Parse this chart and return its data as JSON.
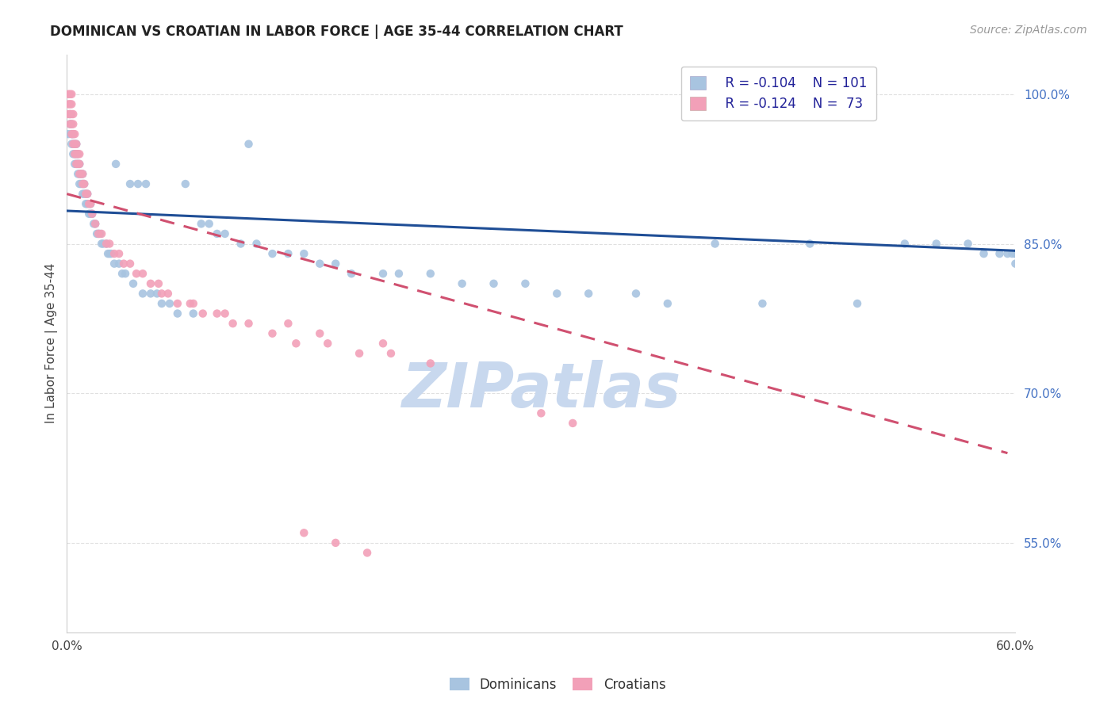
{
  "title": "DOMINICAN VS CROATIAN IN LABOR FORCE | AGE 35-44 CORRELATION CHART",
  "source": "Source: ZipAtlas.com",
  "ylabel": "In Labor Force | Age 35-44",
  "xlim": [
    0.0,
    0.6
  ],
  "ylim": [
    0.46,
    1.04
  ],
  "right_yticks": [
    1.0,
    0.85,
    0.7,
    0.55
  ],
  "right_ytick_labels": [
    "100.0%",
    "85.0%",
    "70.0%",
    "55.0%"
  ],
  "dominican_color": "#a8c4e0",
  "croatian_color": "#f2a0b8",
  "dominican_line_color": "#1f4e96",
  "croatian_line_color": "#d05070",
  "legend_R_dominican": "R = -0.104",
  "legend_N_dominican": "N = 101",
  "legend_R_croatian": "R = -0.124",
  "legend_N_croatian": "N =  73",
  "watermark": "ZIPatlas",
  "watermark_color": "#c8d8ee",
  "dominican_x": [
    0.001,
    0.002,
    0.002,
    0.003,
    0.003,
    0.003,
    0.004,
    0.004,
    0.004,
    0.005,
    0.005,
    0.005,
    0.006,
    0.006,
    0.006,
    0.007,
    0.007,
    0.007,
    0.008,
    0.008,
    0.008,
    0.009,
    0.009,
    0.01,
    0.01,
    0.01,
    0.011,
    0.011,
    0.012,
    0.012,
    0.013,
    0.013,
    0.014,
    0.015,
    0.015,
    0.016,
    0.017,
    0.018,
    0.019,
    0.02,
    0.021,
    0.022,
    0.023,
    0.025,
    0.026,
    0.027,
    0.028,
    0.03,
    0.031,
    0.033,
    0.035,
    0.037,
    0.04,
    0.042,
    0.045,
    0.048,
    0.05,
    0.053,
    0.057,
    0.06,
    0.065,
    0.07,
    0.075,
    0.08,
    0.085,
    0.09,
    0.095,
    0.1,
    0.11,
    0.115,
    0.12,
    0.13,
    0.14,
    0.15,
    0.16,
    0.17,
    0.18,
    0.2,
    0.21,
    0.23,
    0.25,
    0.27,
    0.29,
    0.31,
    0.33,
    0.36,
    0.38,
    0.41,
    0.44,
    0.47,
    0.5,
    0.53,
    0.55,
    0.57,
    0.58,
    0.59,
    0.595,
    0.598,
    0.6,
    0.6,
    0.6
  ],
  "dominican_y": [
    0.96,
    0.97,
    0.98,
    0.95,
    0.96,
    0.97,
    0.94,
    0.95,
    0.96,
    0.93,
    0.94,
    0.95,
    0.93,
    0.94,
    0.95,
    0.92,
    0.93,
    0.94,
    0.91,
    0.92,
    0.93,
    0.91,
    0.92,
    0.9,
    0.91,
    0.92,
    0.9,
    0.91,
    0.89,
    0.9,
    0.89,
    0.9,
    0.88,
    0.88,
    0.89,
    0.88,
    0.87,
    0.87,
    0.86,
    0.86,
    0.86,
    0.85,
    0.85,
    0.85,
    0.84,
    0.84,
    0.84,
    0.83,
    0.93,
    0.83,
    0.82,
    0.82,
    0.91,
    0.81,
    0.91,
    0.8,
    0.91,
    0.8,
    0.8,
    0.79,
    0.79,
    0.78,
    0.91,
    0.78,
    0.87,
    0.87,
    0.86,
    0.86,
    0.85,
    0.95,
    0.85,
    0.84,
    0.84,
    0.84,
    0.83,
    0.83,
    0.82,
    0.82,
    0.82,
    0.82,
    0.81,
    0.81,
    0.81,
    0.8,
    0.8,
    0.8,
    0.79,
    0.85,
    0.79,
    0.85,
    0.79,
    0.85,
    0.85,
    0.85,
    0.84,
    0.84,
    0.84,
    0.84,
    0.84,
    0.84,
    0.83
  ],
  "croatian_x": [
    0.001,
    0.001,
    0.001,
    0.002,
    0.002,
    0.002,
    0.002,
    0.003,
    0.003,
    0.003,
    0.003,
    0.003,
    0.004,
    0.004,
    0.004,
    0.004,
    0.005,
    0.005,
    0.005,
    0.006,
    0.006,
    0.006,
    0.007,
    0.007,
    0.008,
    0.008,
    0.008,
    0.009,
    0.01,
    0.01,
    0.011,
    0.012,
    0.013,
    0.014,
    0.015,
    0.016,
    0.018,
    0.02,
    0.022,
    0.025,
    0.027,
    0.03,
    0.033,
    0.036,
    0.04,
    0.044,
    0.048,
    0.053,
    0.058,
    0.064,
    0.07,
    0.078,
    0.086,
    0.095,
    0.105,
    0.115,
    0.13,
    0.145,
    0.165,
    0.185,
    0.205,
    0.23,
    0.06,
    0.08,
    0.1,
    0.14,
    0.16,
    0.2,
    0.3,
    0.32,
    0.15,
    0.17,
    0.19
  ],
  "croatian_y": [
    0.99,
    1.0,
    0.98,
    0.97,
    0.98,
    0.99,
    1.0,
    0.96,
    0.97,
    0.98,
    0.99,
    1.0,
    0.95,
    0.96,
    0.97,
    0.98,
    0.94,
    0.95,
    0.96,
    0.93,
    0.94,
    0.95,
    0.93,
    0.94,
    0.92,
    0.93,
    0.94,
    0.92,
    0.91,
    0.92,
    0.91,
    0.9,
    0.9,
    0.89,
    0.89,
    0.88,
    0.87,
    0.86,
    0.86,
    0.85,
    0.85,
    0.84,
    0.84,
    0.83,
    0.83,
    0.82,
    0.82,
    0.81,
    0.81,
    0.8,
    0.79,
    0.79,
    0.78,
    0.78,
    0.77,
    0.77,
    0.76,
    0.75,
    0.75,
    0.74,
    0.74,
    0.73,
    0.8,
    0.79,
    0.78,
    0.77,
    0.76,
    0.75,
    0.68,
    0.67,
    0.56,
    0.55,
    0.54
  ],
  "dom_trend_x": [
    0.0,
    0.6
  ],
  "dom_trend_y": [
    0.883,
    0.843
  ],
  "cro_trend_x": [
    0.0,
    0.595
  ],
  "cro_trend_y": [
    0.9,
    0.64
  ],
  "grid_color": "#e0e0e0",
  "background_color": "#ffffff",
  "title_color": "#222222",
  "right_axis_color": "#4472c4",
  "marker_size": 9
}
